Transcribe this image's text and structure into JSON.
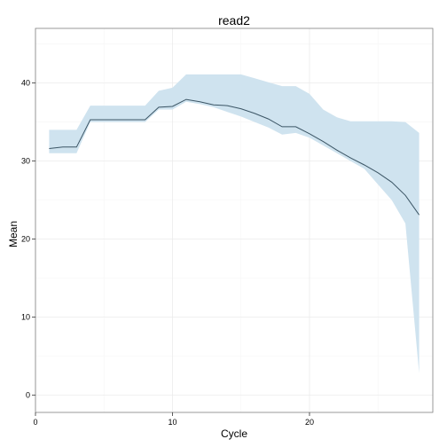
{
  "chart_data": {
    "type": "area",
    "title": "read2",
    "xlabel": "Cycle",
    "ylabel": "Mean",
    "xlim": [
      0,
      29
    ],
    "ylim": [
      -2.2,
      47
    ],
    "x_ticks": [
      0,
      10,
      20
    ],
    "y_ticks": [
      0,
      10,
      20,
      30,
      40
    ],
    "grid": true,
    "colors": {
      "band": "#cfe3ef",
      "line": "#3b5565",
      "grid_major": "#ebebeb",
      "grid_minor": "#f5f5f5",
      "panel_border": "#808080"
    },
    "series": [
      {
        "x": [
          1,
          2,
          3,
          4,
          5,
          6,
          7,
          8,
          9,
          10,
          11,
          12,
          13,
          14,
          15,
          16,
          17,
          18,
          19,
          20,
          21,
          22,
          23,
          24,
          25,
          26,
          27,
          28
        ],
        "mean": [
          31.6,
          31.8,
          31.8,
          35.3,
          35.3,
          35.3,
          35.3,
          35.3,
          36.9,
          37.0,
          37.9,
          37.6,
          37.2,
          37.1,
          36.7,
          36.1,
          35.4,
          34.4,
          34.4,
          33.5,
          32.5,
          31.4,
          30.4,
          29.5,
          28.5,
          27.3,
          25.6,
          23.1
        ],
        "upper": [
          34.0,
          34.0,
          34.0,
          37.1,
          37.1,
          37.1,
          37.1,
          37.1,
          39.0,
          39.4,
          41.1,
          41.1,
          41.1,
          41.1,
          41.1,
          40.6,
          40.1,
          39.6,
          39.6,
          38.6,
          36.6,
          35.6,
          35.1,
          35.1,
          35.1,
          35.1,
          35.0,
          33.6
        ],
        "lower": [
          31.0,
          31.0,
          31.0,
          35.0,
          35.0,
          35.0,
          35.0,
          35.0,
          36.6,
          36.6,
          37.6,
          37.3,
          36.9,
          36.3,
          35.7,
          35.0,
          34.3,
          33.4,
          33.6,
          33.0,
          32.0,
          31.0,
          30.0,
          29.0,
          27.0,
          25.0,
          22.0,
          2.8
        ]
      }
    ]
  }
}
